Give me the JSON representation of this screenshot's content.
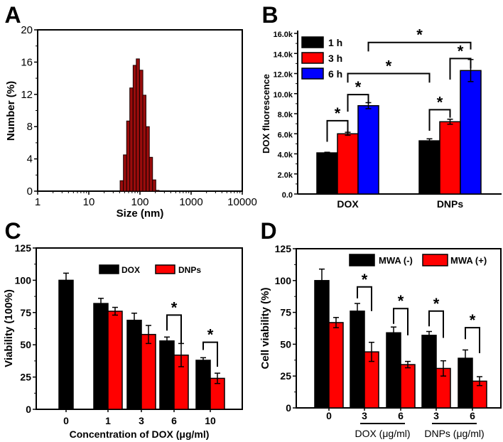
{
  "chart_data": [
    {
      "panel": "A",
      "type": "bar",
      "subtype": "histogram",
      "xlabel": "Size (nm)",
      "ylabel": "Number (%)",
      "xscale": "log",
      "xlim": [
        1,
        10000
      ],
      "ylim": [
        0,
        20
      ],
      "xticks": [
        1,
        10,
        100,
        1000,
        10000
      ],
      "xtick_labels": [
        "1",
        "10",
        "100",
        "1000",
        "10000"
      ],
      "yticks": [
        0,
        4,
        8,
        12,
        16,
        20
      ],
      "ytick_labels": [
        "0",
        "4",
        "8",
        "12",
        "16",
        "20"
      ],
      "x": [
        44,
        51,
        59,
        68,
        79,
        91,
        106,
        122,
        142,
        164,
        190,
        220
      ],
      "values": [
        1.3,
        4.5,
        8.7,
        12.8,
        15.6,
        16.4,
        15.0,
        11.9,
        8.0,
        4.2,
        1.4,
        0.1
      ],
      "color": "#9a0c0c"
    },
    {
      "panel": "B",
      "type": "bar",
      "categories": [
        "DOX",
        "DNPs"
      ],
      "ylabel": "DOX  fluorescence",
      "ylim": [
        0,
        16000
      ],
      "yticks": [
        0,
        2000,
        4000,
        6000,
        8000,
        10000,
        12000,
        14000,
        16000
      ],
      "ytick_labels": [
        "0.0",
        "2.0k",
        "4.0k",
        "6.0k",
        "8.0k",
        "10.0k",
        "12.0k",
        "14.0k",
        "16.0k"
      ],
      "legend": "top-left",
      "series": [
        {
          "name": "1 h",
          "color": "#000000",
          "values": [
            4100,
            5300
          ],
          "errors": [
            60,
            200
          ]
        },
        {
          "name": "3 h",
          "color": "#ff0000",
          "values": [
            6000,
            7200
          ],
          "errors": [
            150,
            250
          ]
        },
        {
          "name": "6 h",
          "color": "#0000ff",
          "values": [
            8800,
            12300
          ],
          "errors": [
            300,
            1100
          ]
        }
      ],
      "significance": [
        {
          "label": "*",
          "from": [
            0,
            0
          ],
          "to": [
            0,
            1
          ],
          "top": 7300,
          "from_end": 5200,
          "to_end": 6100
        },
        {
          "label": "*",
          "from": [
            0,
            1
          ],
          "to": [
            0,
            2
          ],
          "top": 9900,
          "from_end": 8200,
          "to_end": 9000
        },
        {
          "label": "*",
          "from": [
            0,
            1
          ],
          "to": [
            1,
            0
          ],
          "top": 12000,
          "from_end": 11100,
          "to_end": 11100
        },
        {
          "label": "*",
          "from": [
            0,
            2
          ],
          "to": [
            1,
            2
          ],
          "top": 15100,
          "from_end": 14200,
          "to_end": 14400
        },
        {
          "label": "*",
          "from": [
            1,
            0
          ],
          "to": [
            1,
            1
          ],
          "top": 8400,
          "from_end": 6300,
          "to_end": 7600
        },
        {
          "label": "*",
          "from": [
            1,
            1
          ],
          "to": [
            1,
            2
          ],
          "top": 13500,
          "from_end": 11400,
          "to_end": 12500
        }
      ]
    },
    {
      "panel": "C",
      "type": "bar",
      "categories": [
        "0",
        "1",
        "3",
        "6",
        "10"
      ],
      "xlabel": "Concentration of DOX (μg/ml)",
      "ylabel": "Viability (100%)",
      "ylim": [
        0,
        125
      ],
      "yticks": [
        0,
        25,
        50,
        75,
        100,
        125
      ],
      "ytick_labels": [
        "0",
        "25",
        "50",
        "75",
        "100",
        "125"
      ],
      "legend": "top-center",
      "series": [
        {
          "name": "DOX",
          "color": "#000000",
          "values": [
            100,
            82,
            69,
            53,
            38
          ],
          "errors": [
            5.5,
            4,
            5.5,
            3,
            2
          ]
        },
        {
          "name": "DNPs",
          "color": "#ff0000",
          "values": [
            null,
            76,
            58,
            42,
            24
          ],
          "errors": [
            null,
            3,
            7,
            9,
            4
          ]
        }
      ],
      "significance": [
        {
          "label": "*",
          "from": [
            3,
            0
          ],
          "to": [
            3,
            1
          ],
          "top": 73,
          "from_end": 61,
          "to_end": 51
        },
        {
          "label": "*",
          "from": [
            4,
            0
          ],
          "to": [
            4,
            1
          ],
          "top": 52,
          "from_end": 46,
          "to_end": 33
        }
      ]
    },
    {
      "panel": "D",
      "type": "bar",
      "categories": [
        "0",
        "3",
        "6",
        "3",
        "6"
      ],
      "category_groups": [
        {
          "label": "DOX (μg/ml)",
          "categories": [
            1,
            2
          ]
        },
        {
          "label": "DNPs (μg/ml)",
          "categories": [
            3,
            4
          ]
        }
      ],
      "ylabel": "Cell viability (%)",
      "ylim": [
        0,
        125
      ],
      "yticks": [
        0,
        25,
        50,
        75,
        100,
        125
      ],
      "ytick_labels": [
        "0",
        "25",
        "50",
        "75",
        "100",
        "125"
      ],
      "legend": "top-right",
      "series": [
        {
          "name": "MWA (-)",
          "color": "#000000",
          "values": [
            100,
            76,
            59,
            57,
            39
          ],
          "errors": [
            9,
            6,
            4.5,
            3,
            6.5
          ]
        },
        {
          "name": "MWA (+)",
          "color": "#ff0000",
          "values": [
            67,
            44,
            34,
            31,
            21
          ],
          "errors": [
            4,
            7.5,
            2.5,
            6,
            3.5
          ]
        }
      ],
      "significance": [
        {
          "label": "*",
          "from": [
            1,
            0
          ],
          "to": [
            1,
            1
          ],
          "top": 95,
          "from_end": 86,
          "to_end": 76
        },
        {
          "label": "*",
          "from": [
            2,
            0
          ],
          "to": [
            2,
            1
          ],
          "top": 78,
          "from_end": 66,
          "to_end": 57
        },
        {
          "label": "*",
          "from": [
            3,
            0
          ],
          "to": [
            3,
            1
          ],
          "top": 76,
          "from_end": 64,
          "to_end": 55
        },
        {
          "label": "*",
          "from": [
            4,
            0
          ],
          "to": [
            4,
            1
          ],
          "top": 63,
          "from_end": 54,
          "to_end": 43
        }
      ]
    }
  ]
}
